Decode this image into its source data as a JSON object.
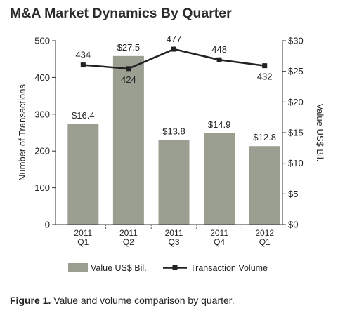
{
  "chart_data": {
    "type": "bar",
    "title": "M&A Market Dynamics By Quarter",
    "categories": [
      [
        "2011",
        "Q1"
      ],
      [
        "2011",
        "Q2"
      ],
      [
        "2011",
        "Q3"
      ],
      [
        "2011",
        "Q4"
      ],
      [
        "2012",
        "Q1"
      ]
    ],
    "series": [
      {
        "name": "Value US$ Bil.",
        "type": "bar",
        "axis": "right",
        "values": [
          16.4,
          27.5,
          13.8,
          14.9,
          12.8
        ],
        "labels": [
          "$16.4",
          "$27.5",
          "$13.8",
          "$14.9",
          "$12.8"
        ],
        "color": "#9b9f92"
      },
      {
        "name": "Transaction Volume",
        "type": "line",
        "axis": "left",
        "values": [
          434,
          424,
          477,
          448,
          432
        ],
        "labels": [
          "434",
          "424",
          "477",
          "448",
          "432"
        ],
        "color": "#222222"
      }
    ],
    "y_left": {
      "label": "Number of Transactions",
      "range": [
        0,
        500
      ],
      "ticks": [
        0,
        100,
        200,
        300,
        400,
        500
      ],
      "tick_labels": [
        "0",
        "100",
        "200",
        "300",
        "400",
        "500"
      ]
    },
    "y_right": {
      "label": "Value US$ Bil.",
      "range": [
        0,
        30
      ],
      "ticks": [
        0,
        5,
        10,
        15,
        20,
        25,
        30
      ],
      "tick_labels": [
        "$0",
        "$5",
        "$10",
        "$15",
        "$20",
        "$25",
        "$30"
      ]
    },
    "xlabel": "",
    "grid": false,
    "legend": {
      "position": "bottom",
      "entries": [
        "Value US$ Bil.",
        "Transaction Volume"
      ]
    }
  },
  "caption": {
    "label": "Figure 1.",
    "text": " Value and volume comparison by quarter."
  }
}
